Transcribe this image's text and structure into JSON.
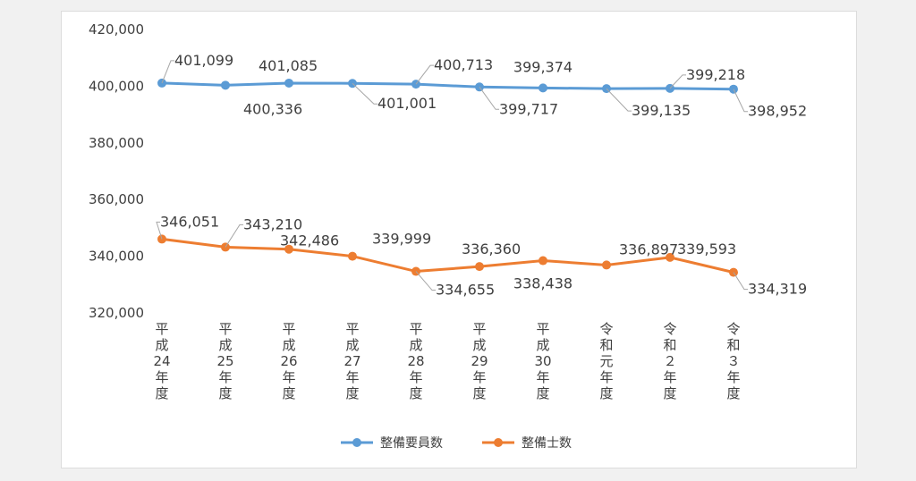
{
  "chart_data": {
    "type": "line",
    "title": "",
    "xlabel": "",
    "ylabel": "",
    "ylim": [
      320000,
      420000
    ],
    "yticks": [
      320000,
      340000,
      360000,
      380000,
      400000,
      420000
    ],
    "ytick_labels": [
      "320,000",
      "340,000",
      "360,000",
      "380,000",
      "400,000",
      "420,000"
    ],
    "grid": false,
    "legend": "bottom",
    "categories": [
      "平成24年度",
      "平成25年度",
      "平成26年度",
      "平成27年度",
      "平成28年度",
      "平成29年度",
      "平成30年度",
      "令和元年度",
      "令和2年度",
      "令和3年度"
    ],
    "category_labels": [
      "平成24年度",
      "平成25年度",
      "平成26年度",
      "平成27年度",
      "平成28年度",
      "平成29年度",
      "平成30年度",
      "令和元年度",
      "令和２年度",
      "令和３年度"
    ],
    "series": [
      {
        "name": "整備要員数",
        "color": "#5b9bd5",
        "values": [
          401099,
          400336,
          401085,
          401001,
          400713,
          399717,
          399374,
          399135,
          399218,
          398952
        ],
        "labels": [
          "401,099",
          "400,336",
          "401,085",
          "401,001",
          "400,713",
          "399,717",
          "399,374",
          "399,135",
          "399,218",
          "398,952"
        ]
      },
      {
        "name": "整備士数",
        "color": "#ed7d31",
        "values": [
          346051,
          343210,
          342486,
          339999,
          334655,
          336360,
          338438,
          336897,
          339593,
          334319
        ],
        "labels": [
          "346,051",
          "343,210",
          "342,486",
          "339,999",
          "334,655",
          "336,360",
          "338,438",
          "336,897",
          "339,593",
          "334,319"
        ]
      }
    ]
  }
}
